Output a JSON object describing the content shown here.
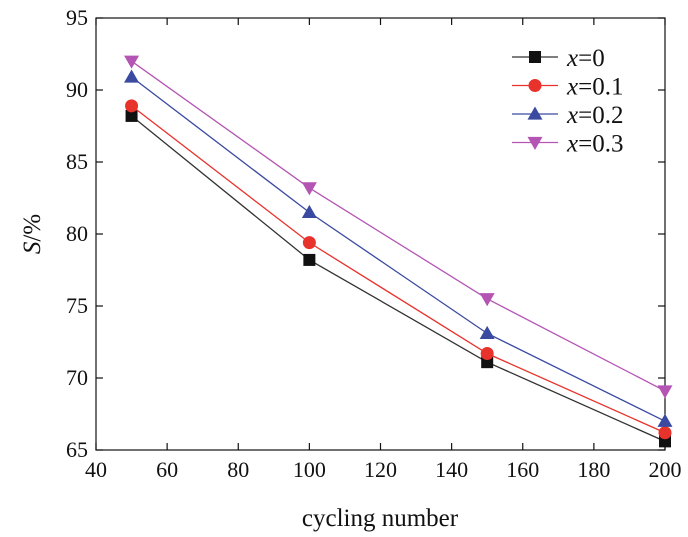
{
  "chart_data": {
    "type": "line",
    "title": "",
    "xlabel": "cycling number",
    "ylabel": "S/%",
    "ylabel_italic_part": "S",
    "ylabel_rest": "/%",
    "x": [
      50,
      100,
      150,
      200
    ],
    "xlim": [
      40,
      200
    ],
    "ylim": [
      65,
      95
    ],
    "xticks": [
      40,
      60,
      80,
      100,
      120,
      140,
      160,
      180,
      200
    ],
    "yticks": [
      65,
      70,
      75,
      80,
      85,
      90,
      95
    ],
    "grid": false,
    "legend_position": "top-right",
    "series": [
      {
        "name": "x=0",
        "name_var": "x",
        "name_val": "=0",
        "marker": "square",
        "color": "#111111",
        "line_color": "#333333",
        "values": [
          88.2,
          78.2,
          71.1,
          65.6
        ]
      },
      {
        "name": "x=0.1",
        "name_var": "x",
        "name_val": "=0.1",
        "marker": "circle",
        "color": "#e8322c",
        "line_color": "#e8322c",
        "values": [
          88.9,
          79.4,
          71.7,
          66.2
        ]
      },
      {
        "name": "x=0.2",
        "name_var": "x",
        "name_val": "=0.2",
        "marker": "triangle-up",
        "color": "#3a4aa0",
        "line_color": "#3a4aa0",
        "values": [
          90.9,
          81.5,
          73.1,
          67.0
        ]
      },
      {
        "name": "x=0.3",
        "name_var": "x",
        "name_val": "=0.3",
        "marker": "triangle-down",
        "color": "#b455b4",
        "line_color": "#b455b4",
        "values": [
          92.0,
          83.2,
          75.5,
          69.1
        ]
      }
    ]
  }
}
